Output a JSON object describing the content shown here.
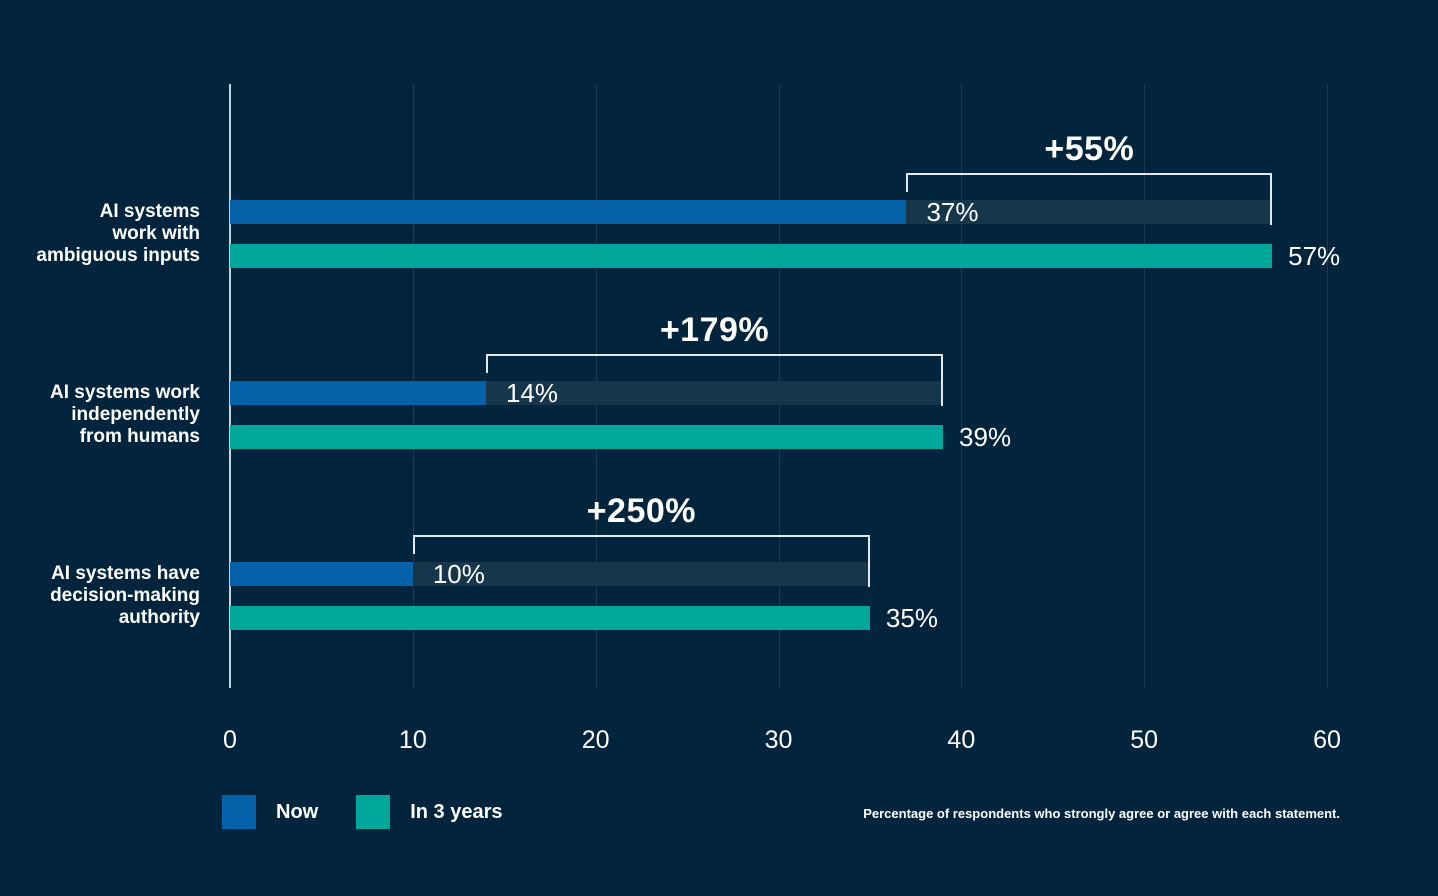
{
  "chart_data": {
    "type": "bar",
    "orientation": "horizontal",
    "title": "",
    "xlabel": "",
    "ylabel": "",
    "xlim": [
      0,
      60
    ],
    "ticks": [
      0,
      10,
      20,
      30,
      40,
      50,
      60
    ],
    "grid": true,
    "categories": [
      [
        "AI systems",
        "work with",
        "ambiguous inputs"
      ],
      [
        "AI systems work",
        "independently",
        "from humans"
      ],
      [
        "AI systems have",
        "decision-making",
        "authority"
      ]
    ],
    "series": [
      {
        "name": "Now",
        "color": "#0561a8",
        "values": [
          37,
          14,
          10
        ]
      },
      {
        "name": "In 3 years",
        "color": "#00a79b",
        "values": [
          57,
          39,
          35
        ]
      }
    ],
    "value_labels_now": [
      "37%",
      "14%",
      "10%"
    ],
    "value_labels_future": [
      "57%",
      "39%",
      "35%"
    ],
    "change_labels": [
      "+55%",
      "+179%",
      "+250%"
    ],
    "legend": [
      {
        "label": "Now",
        "color": "#0561a8"
      },
      {
        "label": "In 3 years",
        "color": "#00a79b"
      }
    ],
    "legend_position": "bottom-left",
    "footnote": "Percentage of respondents who strongly agree or agree with each statement."
  },
  "colors": {
    "background": "#02243c",
    "now": "#0561a8",
    "future": "#00a79b",
    "ghost_bar": "#16364b",
    "gridline": "#1c3b52",
    "axis_line": "#c6d2da",
    "bracket": "#e3eaef",
    "text": "#ffffff"
  }
}
